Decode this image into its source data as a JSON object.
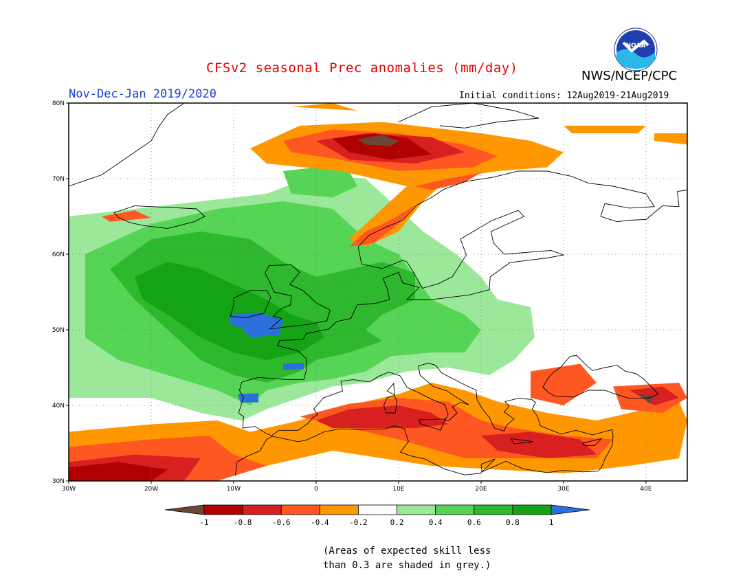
{
  "header": {
    "title": "CFSv2 seasonal Prec anomalies (mm/day)",
    "agency": "NWS/NCEP/CPC",
    "logo_text": "NOAA",
    "season": "Nov-Dec-Jan 2019/2020",
    "initial_conditions": "Initial conditions: 12Aug2019-21Aug2019"
  },
  "map": {
    "lat_labels": [
      "80N",
      "70N",
      "60N",
      "50N",
      "40N",
      "30N"
    ],
    "lon_labels": [
      "30W",
      "20W",
      "10W",
      "0",
      "10E",
      "20E",
      "30E",
      "40E"
    ],
    "lon_range": [
      -30,
      45
    ],
    "lat_range": [
      30,
      80
    ],
    "grid": "dotted"
  },
  "colorbar": {
    "tick_labels": [
      "-1",
      "-0.8",
      "-0.6",
      "-0.4",
      "-0.2",
      "0.2",
      "0.4",
      "0.6",
      "0.8",
      "1"
    ],
    "colors": [
      "#6b4536",
      "#b10000",
      "#d82020",
      "#ff5722",
      "#ff9800",
      "#ffffff",
      "#9be89b",
      "#55d455",
      "#2db82d",
      "#14a314",
      "#2a6fdc"
    ]
  },
  "footnote": {
    "line1": "(Areas of expected skill less",
    "line2": "than 0.3 are shaded in grey.)"
  }
}
